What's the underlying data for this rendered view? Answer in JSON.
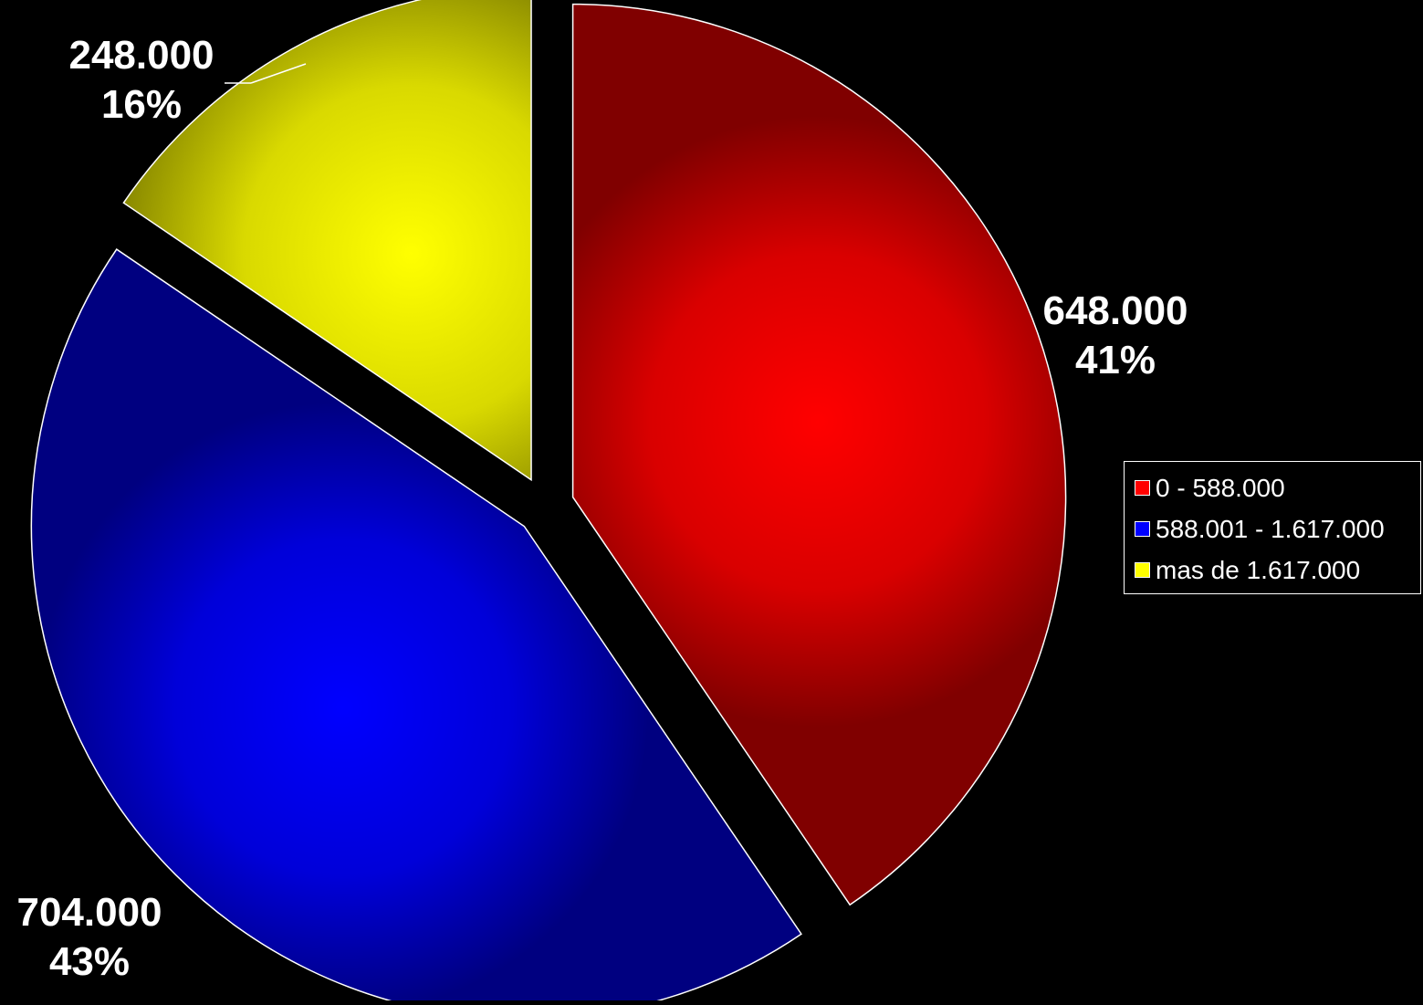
{
  "chart_data": {
    "type": "pie",
    "title": "",
    "categories": [
      "0 - 588.000",
      "588.001 - 1.617.000",
      "mas de 1.617.000"
    ],
    "values": [
      648000,
      704000,
      248000
    ],
    "value_labels": [
      "648.000",
      "704.000",
      "248.000"
    ],
    "percent_labels": [
      "41%",
      "43%",
      "16%"
    ],
    "colors": [
      "#ff0000",
      "#0000ff",
      "#ffff00"
    ],
    "legend_position": "right",
    "exploded": true,
    "start": "12 o'clock, clockwise"
  },
  "legend": {
    "items": [
      {
        "label": "0 - 588.000",
        "color": "#ff0000"
      },
      {
        "label": "588.001 - 1.617.000",
        "color": "#0000ff"
      },
      {
        "label": "mas de 1.617.000",
        "color": "#ffff00"
      }
    ]
  },
  "labels": [
    {
      "value": "648.000",
      "percent": "41%"
    },
    {
      "value": "704.000",
      "percent": "43%"
    },
    {
      "value": "248.000",
      "percent": "16%"
    }
  ]
}
